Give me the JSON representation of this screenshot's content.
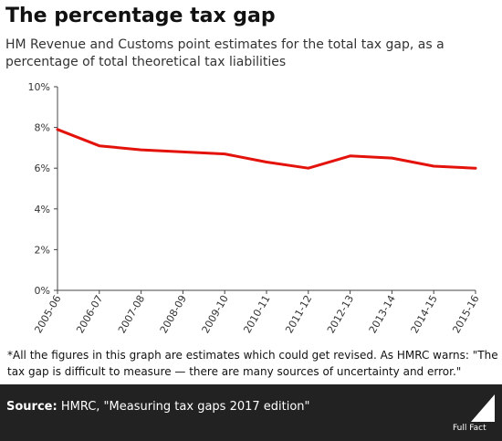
{
  "title": "The percentage tax gap",
  "subtitle": "HM Revenue and Customs point estimates for the total tax gap, as a percentage of total theoretical tax liabilities",
  "footnote": "*All the figures in this graph are estimates which could get revised. As HMRC warns: \"The tax gap is difficult to measure — there are many sources of uncertainty and error.\"",
  "source_label": "Source:",
  "source_text": "HMRC, \"Measuring tax gaps 2017 edition\"",
  "logo_text": "Full Fact",
  "colors": {
    "line": "#e3120b",
    "footer": "#222222",
    "axis": "#444444"
  },
  "chart_data": {
    "type": "line",
    "title": "",
    "xlabel": "",
    "ylabel": "",
    "categories": [
      "2005-06",
      "2006-07",
      "2007-08",
      "2008-09",
      "2009-10",
      "2010-11",
      "2011-12",
      "2012-13",
      "2013-14",
      "2014-15",
      "2015-16"
    ],
    "series": [
      {
        "values": [
          7.9,
          7.1,
          6.9,
          6.8,
          6.7,
          6.3,
          6.0,
          6.6,
          6.5,
          6.1,
          6.0
        ]
      }
    ],
    "ylim": [
      0,
      10
    ],
    "yticks": [
      "0%",
      "2%",
      "4%",
      "6%",
      "8%",
      "10%"
    ],
    "ytick_values": [
      0,
      2,
      4,
      6,
      8,
      10
    ],
    "grid": false,
    "legend": "none"
  }
}
